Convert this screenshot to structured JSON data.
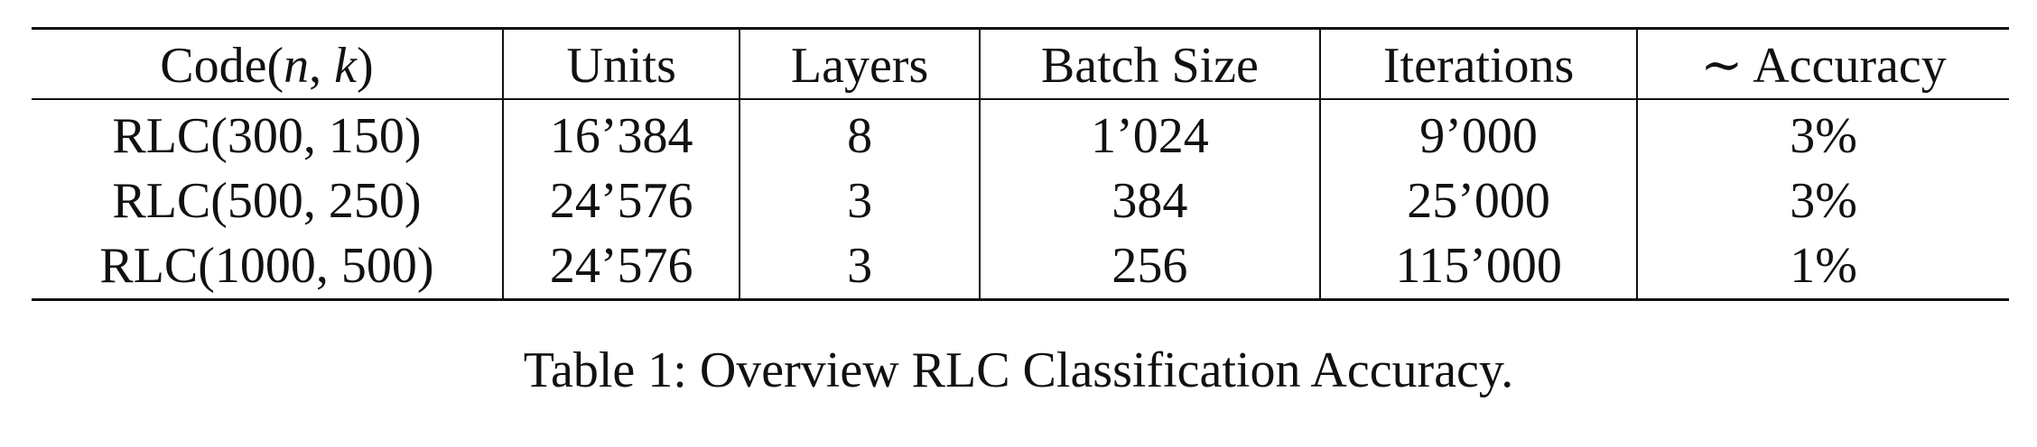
{
  "table": {
    "headers": {
      "code_prefix": "Code(",
      "code_n": "n",
      "code_sep": ", ",
      "code_k": "k",
      "code_suffix": ")",
      "units": "Units",
      "layers": "Layers",
      "batch_size": "Batch Size",
      "iterations": "Iterations",
      "accuracy": "∼ Accuracy"
    },
    "rows": [
      {
        "code": "RLC(300, 150)",
        "units": "16’384",
        "layers": "8",
        "batch_size": "1’024",
        "iterations": "9’000",
        "accuracy": "3%"
      },
      {
        "code": "RLC(500, 250)",
        "units": "24’576",
        "layers": "3",
        "batch_size": "384",
        "iterations": "25’000",
        "accuracy": "3%"
      },
      {
        "code": "RLC(1000, 500)",
        "units": "24’576",
        "layers": "3",
        "batch_size": "256",
        "iterations": "115’000",
        "accuracy": "1%"
      }
    ]
  },
  "caption": "Table 1: Overview RLC Classification Accuracy."
}
